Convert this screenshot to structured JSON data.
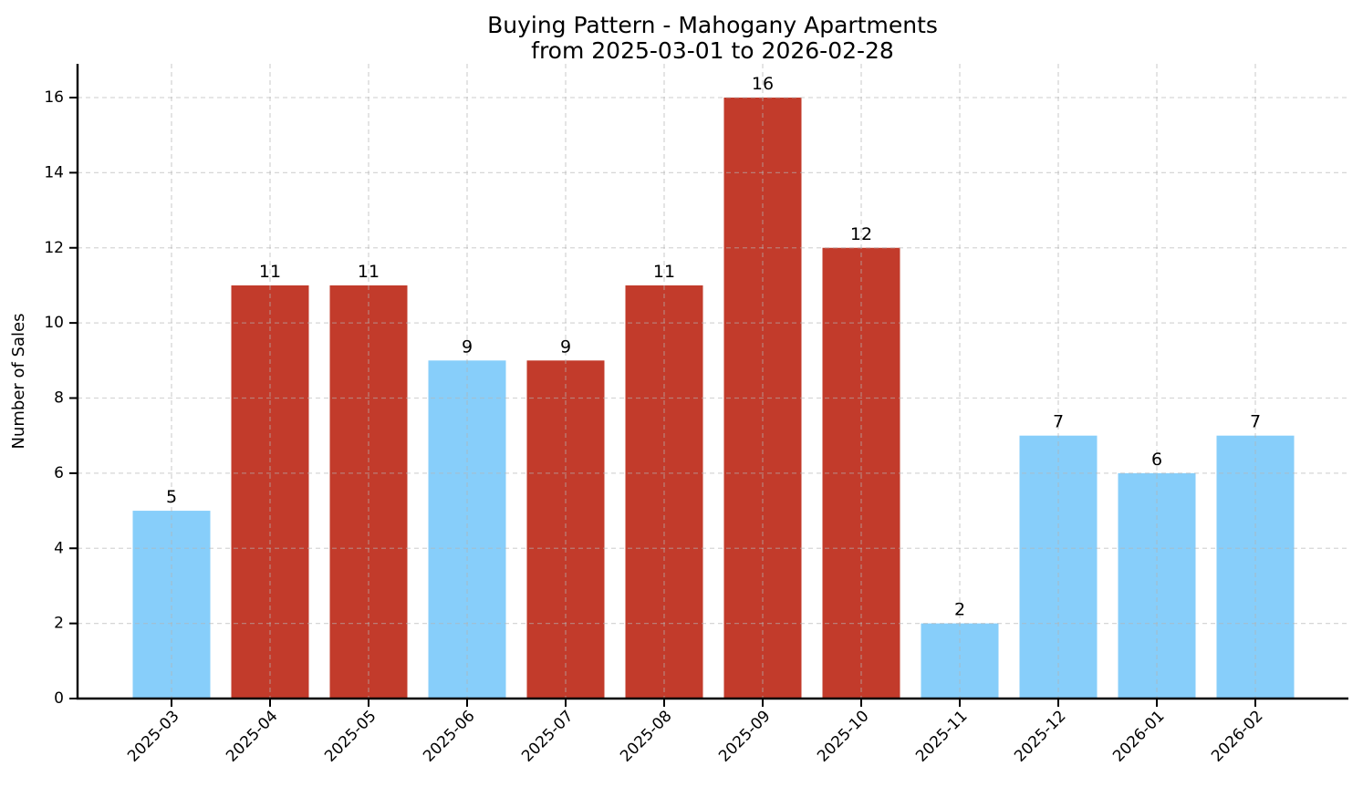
{
  "chart_data": {
    "type": "bar",
    "title": "Buying Pattern - Mahogany Apartments",
    "subtitle": "from 2025-03-01 to 2026-02-28",
    "xlabel": "",
    "ylabel": "Number of Sales",
    "categories": [
      "2025-03",
      "2025-04",
      "2025-05",
      "2025-06",
      "2025-07",
      "2025-08",
      "2025-09",
      "2025-10",
      "2025-11",
      "2025-12",
      "2026-01",
      "2026-02"
    ],
    "values": [
      5,
      11,
      11,
      9,
      9,
      11,
      16,
      12,
      2,
      7,
      6,
      7
    ],
    "bar_value_labels": [
      "5",
      "11",
      "11",
      "9",
      "9",
      "11",
      "16",
      "12",
      "2",
      "7",
      "6",
      "7"
    ],
    "bar_colors": [
      "#87CEFA",
      "#C23B2B",
      "#C23B2B",
      "#87CEFA",
      "#C23B2B",
      "#C23B2B",
      "#C23B2B",
      "#C23B2B",
      "#87CEFA",
      "#87CEFA",
      "#87CEFA",
      "#87CEFA"
    ],
    "color_meaning": {
      "blue": "#87CEFA",
      "red": "#C23B2B"
    },
    "yticks": [
      0,
      2,
      4,
      6,
      8,
      10,
      12,
      14,
      16
    ],
    "ylim": [
      0,
      16.9
    ],
    "grid": {
      "on": true,
      "axis": "both",
      "linestyle": "dashed",
      "color": "#b5b5b5",
      "opacity": 0.55
    },
    "axis_color": "#000000",
    "background": "#ffffff",
    "legend": {
      "visible": false
    },
    "x_tick_rotation_deg": 45
  }
}
